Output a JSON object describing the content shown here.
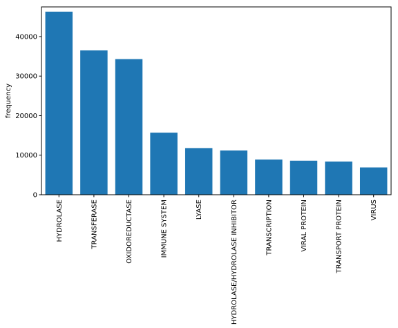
{
  "chart_data": {
    "type": "bar",
    "categories": [
      "HYDROLASE",
      "TRANSFERASE",
      "OXIDOREDUCTASE",
      "IMMUNE SYSTEM",
      "LYASE",
      "HYDROLASE/HYDROLASE INHIBITOR",
      "TRANSCRIPTION",
      "VIRAL PROTEIN",
      "TRANSPORT PROTEIN",
      "VIRUS"
    ],
    "values": [
      46300,
      36500,
      34300,
      15700,
      11800,
      11200,
      8900,
      8600,
      8400,
      6900
    ],
    "title": "",
    "xlabel": "",
    "ylabel": "frequency",
    "ylim": [
      0,
      47500
    ],
    "yticks": [
      0,
      10000,
      20000,
      30000,
      40000
    ],
    "grid": false,
    "bar_color": "#1f77b4"
  }
}
